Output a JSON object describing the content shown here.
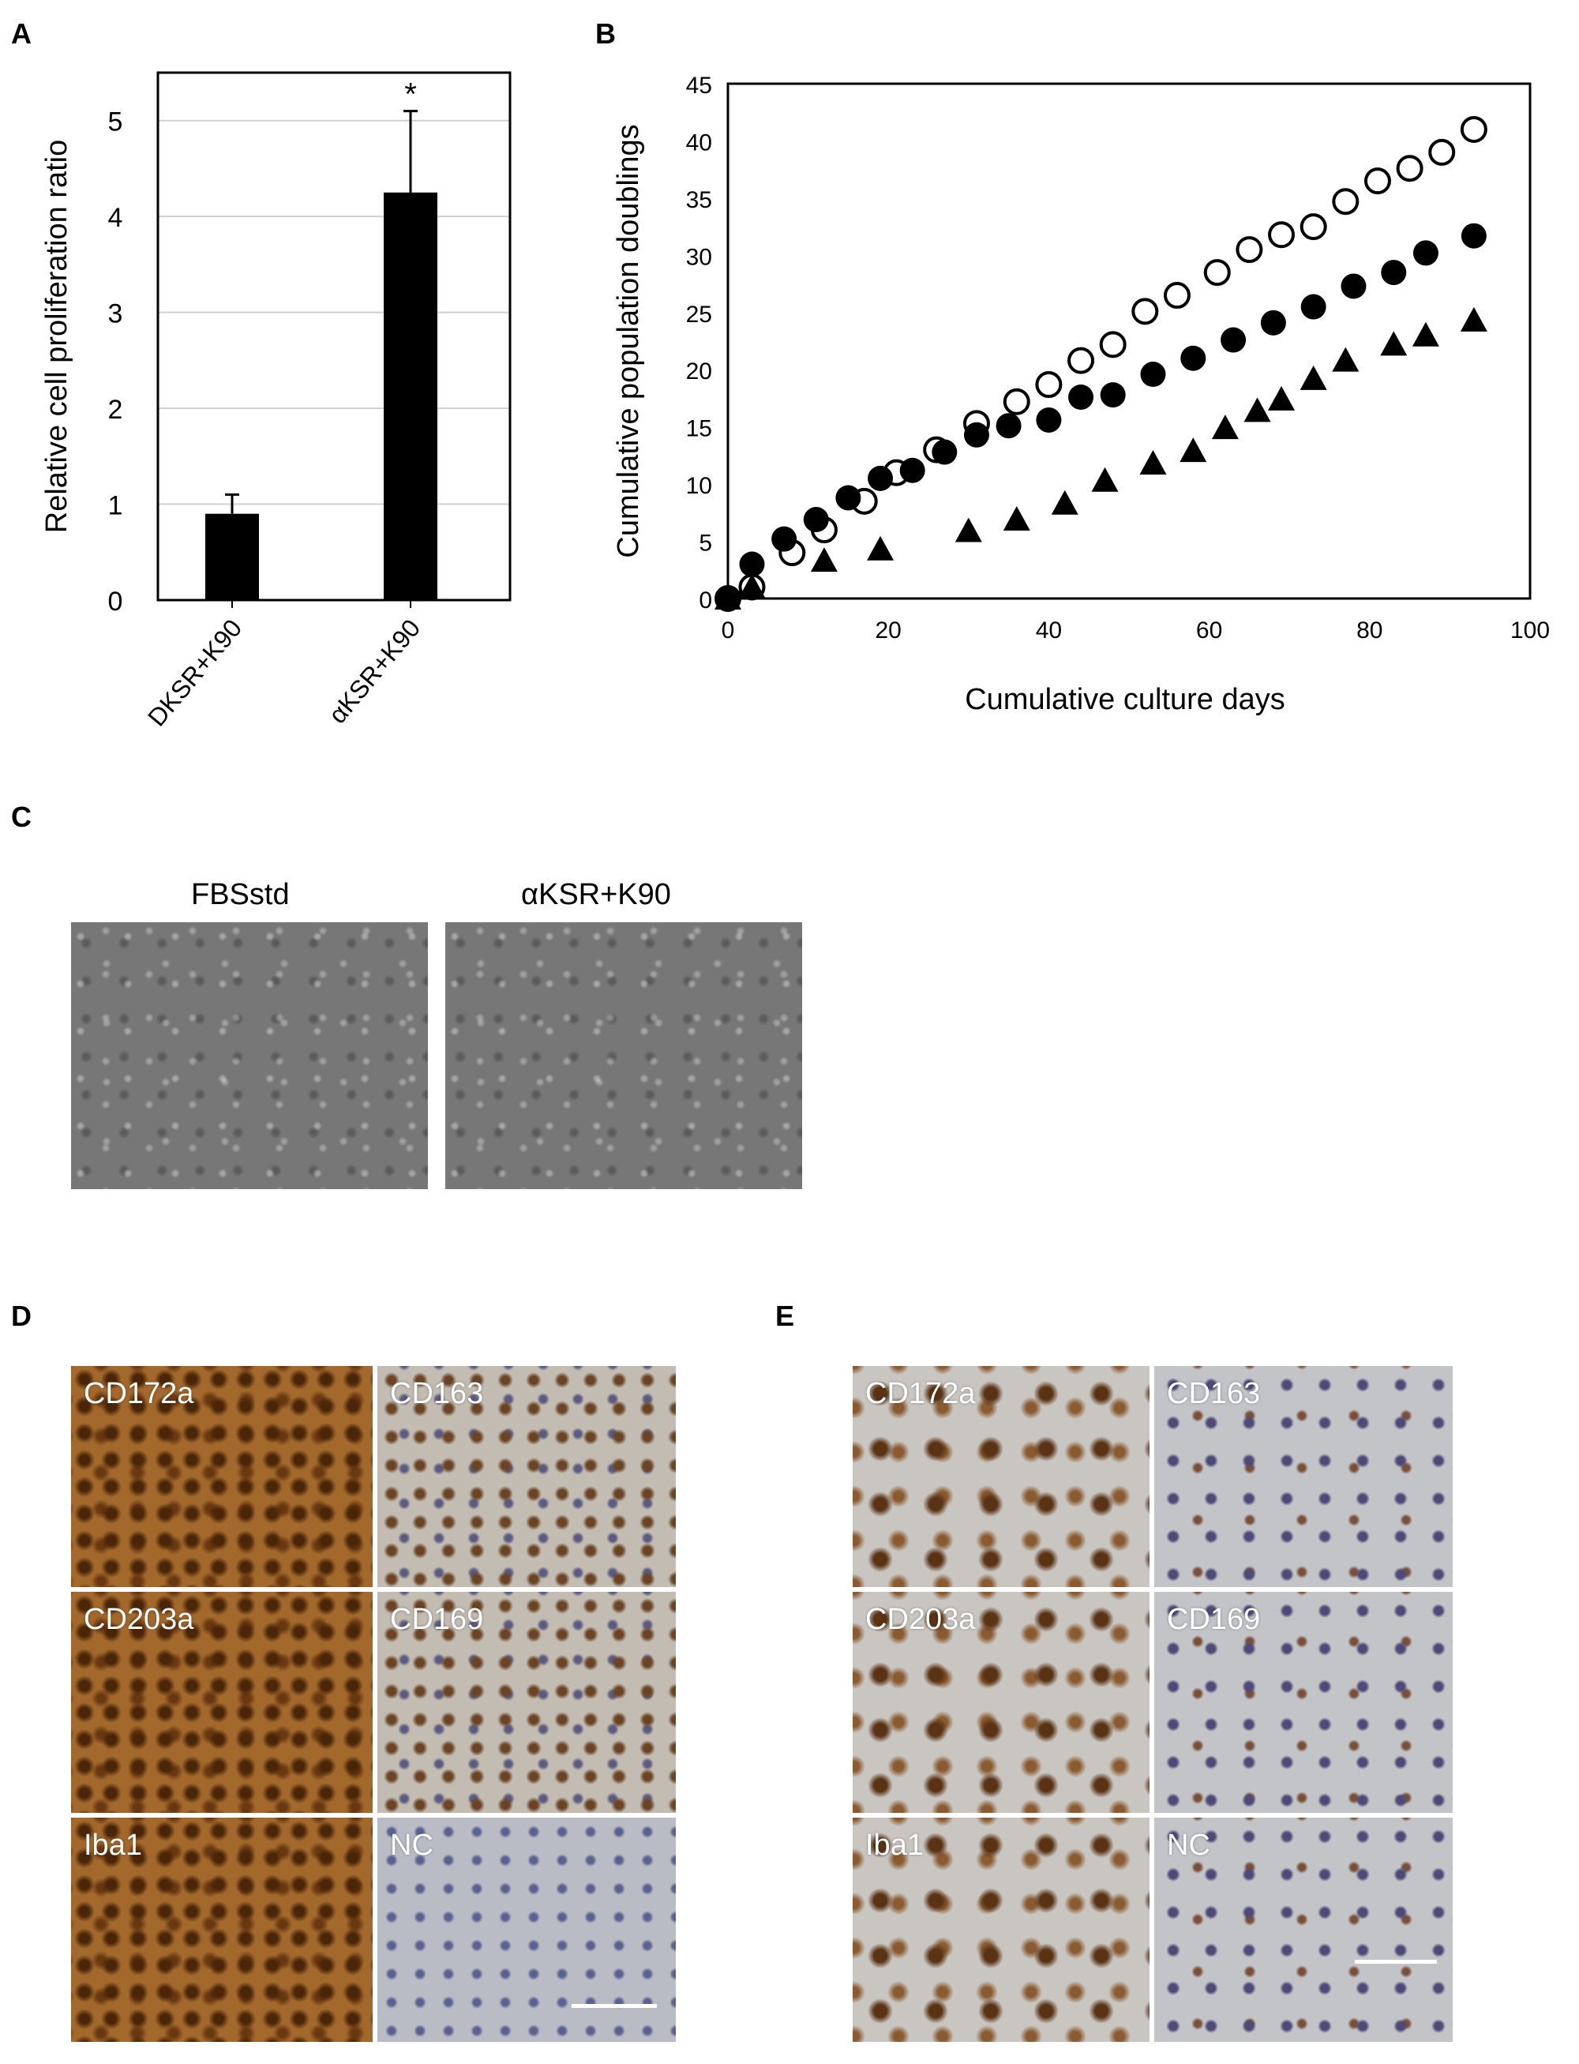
{
  "panels": {
    "A": "A",
    "B": "B",
    "C": "C",
    "D": "D",
    "E": "E"
  },
  "chart_data": [
    {
      "type": "bar",
      "panel": "A",
      "categories": [
        "DKSR+K90",
        "αKSR+K90"
      ],
      "values": [
        0.9,
        4.25
      ],
      "errors": [
        0.2,
        0.85
      ],
      "significance": [
        "",
        "*"
      ],
      "title": "",
      "xlabel": "",
      "ylabel": "Relative cell proliferation ratio",
      "ylim": [
        0,
        5.5
      ],
      "yticks": [
        0,
        1,
        2,
        3,
        4,
        5
      ],
      "grid": true
    },
    {
      "type": "scatter",
      "panel": "B",
      "xlabel": "Cumulative culture days",
      "ylabel": "Cumulative population doublings",
      "xlim": [
        0,
        100
      ],
      "ylim": [
        0,
        45
      ],
      "xticks": [
        0,
        20,
        40,
        60,
        80,
        100
      ],
      "yticks": [
        0,
        5,
        10,
        15,
        20,
        25,
        30,
        35,
        40,
        45
      ],
      "series": [
        {
          "name": "open circles",
          "marker": "open-circle",
          "x": [
            0,
            3,
            8,
            12,
            17,
            21,
            26,
            31,
            36,
            40,
            44,
            48,
            52,
            56,
            61,
            65,
            69,
            73,
            77,
            81,
            85,
            89,
            93
          ],
          "y": [
            0,
            1,
            4,
            6,
            8.5,
            11,
            13,
            15.3,
            17.2,
            18.7,
            20.8,
            22.2,
            25.1,
            26.5,
            28.5,
            30.5,
            31.8,
            32.5,
            34.7,
            36.5,
            37.6,
            39.0,
            41.0
          ]
        },
        {
          "name": "filled circles",
          "marker": "filled-circle",
          "x": [
            0,
            3,
            7,
            11,
            15,
            19,
            23,
            27,
            31,
            35,
            40,
            44,
            48,
            53,
            58,
            63,
            68,
            73,
            78,
            83,
            87,
            93
          ],
          "y": [
            0,
            3,
            5.2,
            6.9,
            8.8,
            10.5,
            11.2,
            12.8,
            14.3,
            15.1,
            15.6,
            17.6,
            17.8,
            19.6,
            21.0,
            22.6,
            24.1,
            25.5,
            27.3,
            28.5,
            30.2,
            31.7
          ]
        },
        {
          "name": "filled triangles",
          "marker": "filled-triangle",
          "x": [
            0,
            3,
            12,
            19,
            30,
            36,
            42,
            47,
            53,
            58,
            62,
            66,
            69,
            73,
            77,
            83,
            87,
            93
          ],
          "y": [
            0,
            1,
            3.3,
            4.3,
            5.9,
            6.9,
            8.3,
            10.3,
            11.8,
            12.9,
            14.9,
            16.4,
            17.4,
            19.2,
            20.8,
            22.2,
            23.0,
            24.3
          ]
        }
      ]
    }
  ],
  "panel_c": {
    "labels": [
      "FBSstd",
      "αKSR+K90"
    ]
  },
  "panel_d": {
    "labels": [
      "CD172a",
      "CD163",
      "CD203a",
      "CD169",
      "Iba1",
      "NC"
    ]
  },
  "panel_e": {
    "labels": [
      "CD172a",
      "CD163",
      "CD203a",
      "CD169",
      "Iba1",
      "NC"
    ]
  }
}
